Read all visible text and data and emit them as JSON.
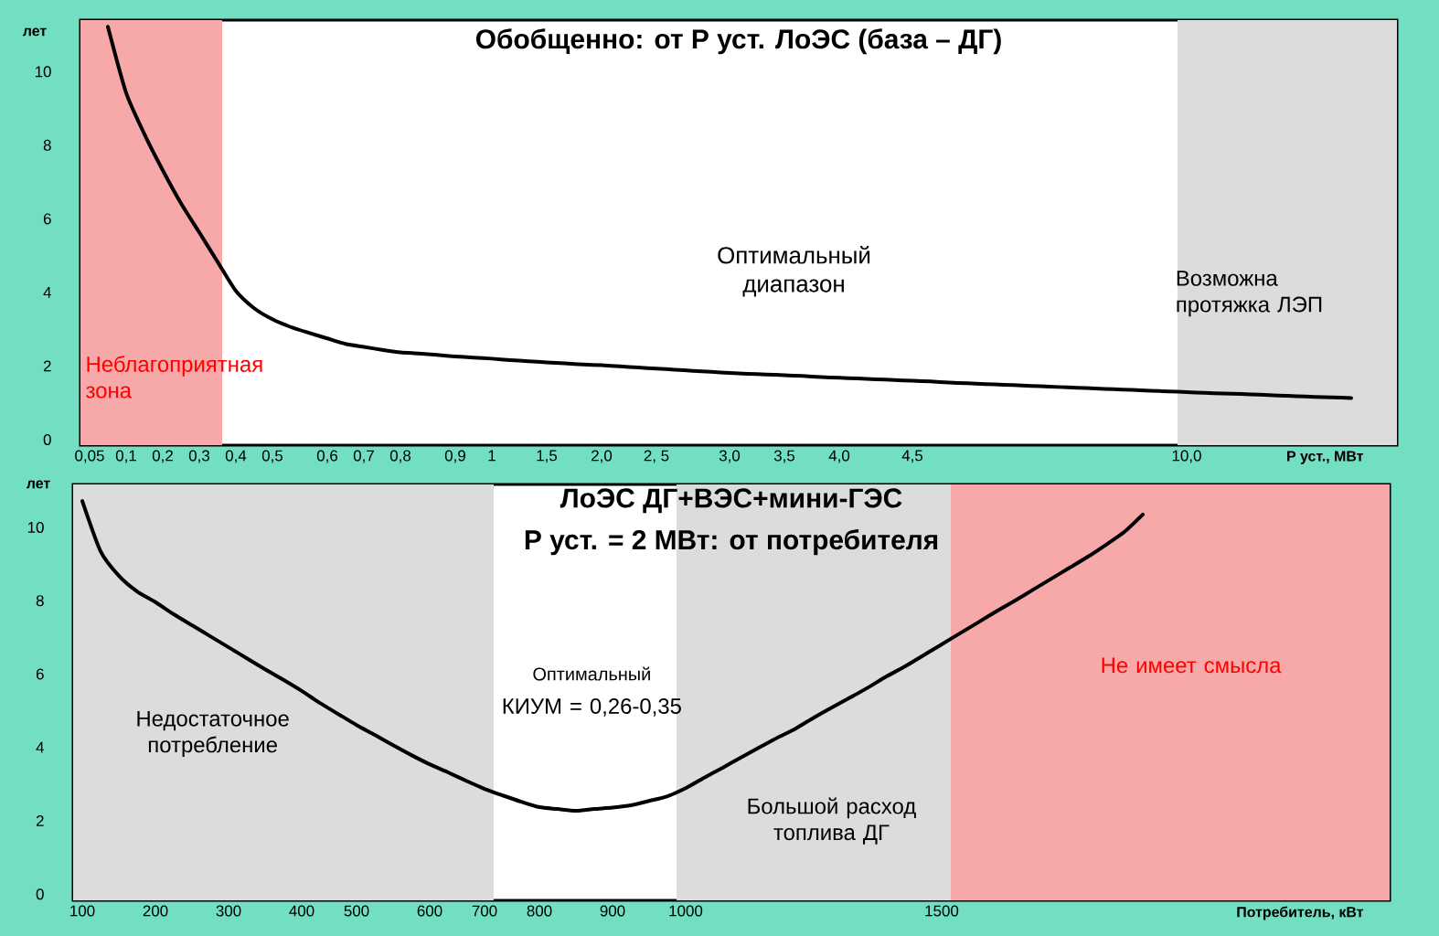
{
  "chart_data": [
    {
      "type": "line",
      "title": "Обобщенно: от P уст. ЛоЭС (база – ДГ)",
      "xlabel": "P уст., МВт",
      "ylabel": "лет",
      "categories": [
        "0,05",
        null,
        "0,1",
        null,
        "0,2",
        null,
        "0,3",
        null,
        "0,4",
        null,
        "0,5",
        null,
        null,
        "0,6",
        null,
        "0,7",
        null,
        "0,8",
        null,
        null,
        "0,9",
        null,
        "1",
        null,
        null,
        "1,5",
        null,
        null,
        "2,0",
        null,
        null,
        "2, 5",
        null,
        null,
        null,
        "3,0",
        null,
        null,
        "3,5",
        null,
        null,
        "4,0",
        null,
        null,
        null,
        "4,5",
        null,
        null,
        null,
        null,
        null,
        null,
        null,
        null,
        null,
        null,
        null,
        null,
        null,
        null,
        "10,0",
        null,
        null,
        null,
        null,
        null,
        null,
        null,
        null,
        null,
        null,
        null
      ],
      "series": [
        {
          "color": "#000000",
          "values": [
            null,
            11.22,
            9.42,
            8.3,
            7.32,
            6.42,
            5.63,
            4.83,
            4.04,
            3.57,
            3.27,
            3.06,
            2.9,
            2.75,
            2.6,
            2.52,
            2.44,
            2.37,
            2.34,
            2.3,
            2.26,
            2.23,
            2.2,
            2.16,
            2.13,
            2.1,
            2.07,
            2.04,
            2.02,
            1.99,
            1.96,
            1.93,
            1.9,
            1.87,
            1.84,
            1.81,
            1.79,
            1.77,
            1.75,
            1.73,
            1.7,
            1.68,
            1.66,
            1.64,
            1.62,
            1.6,
            1.58,
            1.55,
            1.53,
            1.51,
            1.49,
            1.47,
            1.45,
            1.43,
            1.41,
            1.39,
            1.37,
            1.35,
            1.33,
            1.31,
            1.29,
            1.27,
            1.25,
            1.24,
            1.22,
            1.2,
            1.18,
            1.16,
            1.15,
            1.13,
            null,
            null
          ]
        }
      ],
      "ylim": [
        -0.15,
        11.4
      ],
      "yticks": [
        0,
        2,
        4,
        6,
        8,
        10
      ],
      "annotations": [
        "Оптимальный диапазон",
        "Неблагоприятная зона",
        "Возможна протяжка ЛЭП"
      ]
    },
    {
      "type": "line",
      "title": "ЛоЭС  ДГ+ВЭС+мини-ГЭС",
      "subtitle": "P уст. = 2 МВт: от потребителя",
      "xlabel": "Потребитель, кВт",
      "ylabel": "лет",
      "categories": [
        "100",
        null,
        null,
        null,
        "200",
        null,
        null,
        null,
        "300",
        null,
        null,
        null,
        "400",
        null,
        null,
        "500",
        null,
        null,
        null,
        "600",
        null,
        null,
        "700",
        null,
        null,
        "800",
        null,
        null,
        null,
        "900",
        null,
        null,
        null,
        "1000",
        null,
        null,
        null,
        null,
        null,
        null,
        null,
        null,
        null,
        null,
        null,
        null,
        null,
        "1500",
        null,
        null,
        null,
        null,
        null,
        null,
        null,
        null,
        null,
        null,
        null,
        null,
        null,
        null,
        null,
        null,
        null,
        null,
        null,
        null,
        null,
        null,
        null,
        null
      ],
      "series": [
        {
          "color": "#000000",
          "values": [
            10.72,
            9.35,
            8.68,
            8.25,
            7.96,
            7.63,
            7.33,
            7.03,
            6.73,
            6.43,
            6.13,
            5.84,
            5.54,
            5.21,
            4.91,
            4.61,
            4.34,
            4.06,
            3.79,
            3.54,
            3.32,
            3.09,
            2.87,
            2.69,
            2.52,
            2.37,
            2.32,
            2.27,
            2.32,
            2.36,
            2.42,
            2.54,
            2.67,
            2.89,
            3.17,
            3.44,
            3.72,
            3.99,
            4.26,
            4.51,
            4.81,
            5.09,
            5.36,
            5.64,
            5.94,
            6.21,
            6.51,
            6.81,
            7.11,
            7.41,
            7.71,
            8.0,
            8.3,
            8.6,
            8.9,
            9.2,
            9.53,
            9.88,
            10.35,
            null,
            null,
            null,
            null,
            null,
            null,
            null,
            null,
            null,
            null,
            null,
            null,
            null
          ]
        }
      ],
      "ylim": [
        -0.17,
        11.17
      ],
      "yticks": [
        0,
        2,
        4,
        6,
        8,
        10
      ],
      "bands": [
        {
          "axis": "x",
          "from": "1000",
          "to": "1500",
          "label": "Большой расход топлива ДГ",
          "color": "#dcdcdc"
        }
      ],
      "annotations": [
        "Оптимальный",
        "КИУМ = 0,26-0,35",
        "Недостаточное потребление",
        "Не имеет смысла"
      ]
    }
  ]
}
